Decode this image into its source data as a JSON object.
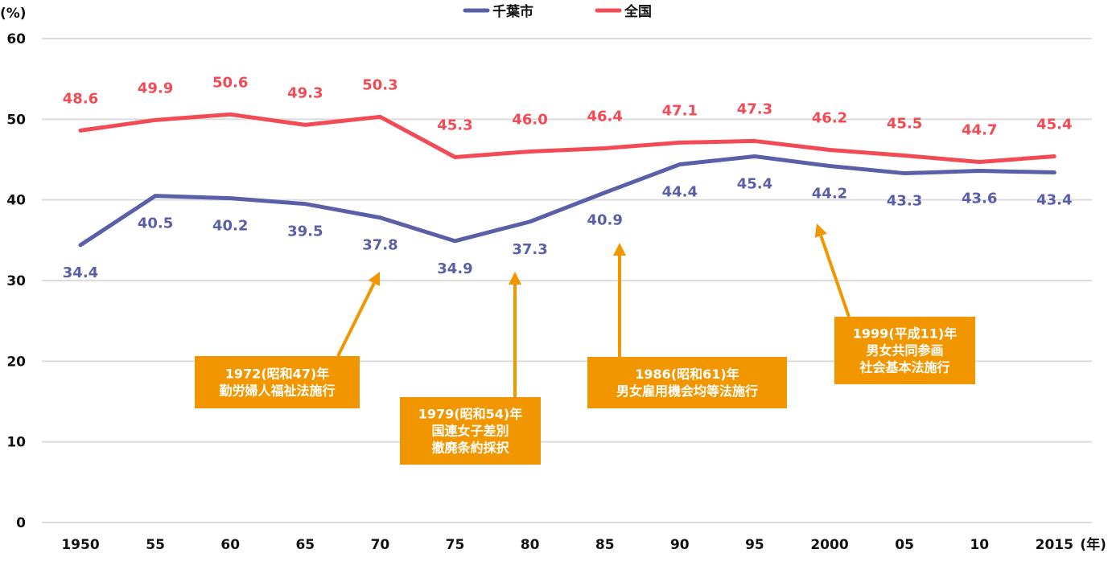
{
  "chart_data": {
    "type": "line",
    "y_unit_label": "(%)",
    "x_unit_label": "(年)",
    "ylim": [
      0,
      60
    ],
    "yticks": [
      0,
      10,
      20,
      30,
      40,
      50,
      60
    ],
    "grid": true,
    "legend_placement": "top-center",
    "categories": [
      "1950",
      "55",
      "60",
      "65",
      "70",
      "75",
      "80",
      "85",
      "90",
      "95",
      "2000",
      "05",
      "10",
      "2015"
    ],
    "series": [
      {
        "name": "千葉市",
        "color": "#5a5fa8",
        "label_position": "below",
        "values": [
          34.4,
          40.5,
          40.2,
          39.5,
          37.8,
          34.9,
          37.3,
          40.9,
          44.4,
          45.4,
          44.2,
          43.3,
          43.6,
          43.4
        ]
      },
      {
        "name": "全国",
        "color": "#f24b55",
        "label_position": "above",
        "values": [
          48.6,
          49.9,
          50.6,
          49.3,
          50.3,
          45.3,
          46.0,
          46.4,
          47.1,
          47.3,
          46.2,
          45.5,
          44.7,
          45.4
        ]
      }
    ],
    "annotations": [
      {
        "lines": [
          "1972(昭和47)年",
          "勤労婦人福祉法施行"
        ],
        "target_category": "70"
      },
      {
        "lines": [
          "1979(昭和54)年",
          "国連女子差別",
          "撤廃条約採択"
        ],
        "target_category": "80"
      },
      {
        "lines": [
          "1986(昭和61)年",
          "男女雇用機会均等法施行"
        ],
        "target_category": "85"
      },
      {
        "lines": [
          "1999(平成11)年",
          "男女共同参画",
          "社会基本法施行"
        ],
        "target_category": "2000"
      }
    ],
    "annotation_color": "#f29600"
  }
}
